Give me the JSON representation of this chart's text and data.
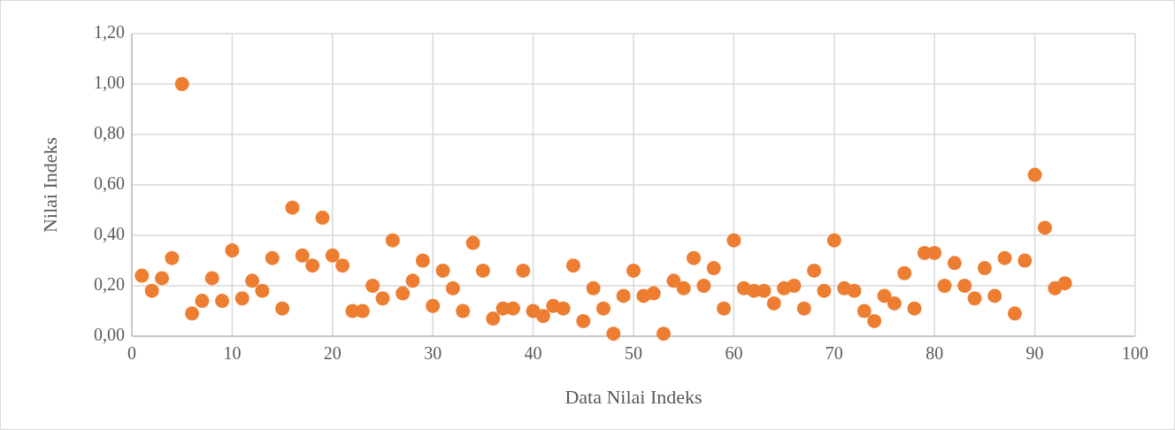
{
  "chart_data": {
    "type": "scatter",
    "xlabel": "Data Nilai Indeks",
    "ylabel": "Nilai Indeks",
    "x": [
      1,
      2,
      3,
      4,
      5,
      6,
      7,
      8,
      9,
      10,
      11,
      12,
      13,
      14,
      15,
      16,
      17,
      18,
      19,
      20,
      21,
      22,
      23,
      24,
      25,
      26,
      27,
      28,
      29,
      30,
      31,
      32,
      33,
      34,
      35,
      36,
      37,
      38,
      39,
      40,
      41,
      42,
      43,
      44,
      45,
      46,
      47,
      48,
      49,
      50,
      51,
      52,
      53,
      54,
      55,
      56,
      57,
      58,
      59,
      60,
      61,
      62,
      63,
      64,
      65,
      66,
      67,
      68,
      69,
      70,
      71,
      72,
      73,
      74,
      75,
      76,
      77,
      78,
      79,
      80,
      81,
      82,
      83,
      84,
      85,
      86,
      87,
      88,
      89,
      90,
      91,
      92,
      93
    ],
    "series": [
      {
        "color": "#ed7d31",
        "values": [
          0.24,
          0.18,
          0.23,
          0.31,
          1.0,
          0.09,
          0.14,
          0.23,
          0.14,
          0.34,
          0.15,
          0.22,
          0.18,
          0.31,
          0.11,
          0.51,
          0.32,
          0.28,
          0.47,
          0.32,
          0.28,
          0.1,
          0.1,
          0.2,
          0.15,
          0.38,
          0.17,
          0.22,
          0.3,
          0.12,
          0.26,
          0.19,
          0.1,
          0.37,
          0.26,
          0.07,
          0.11,
          0.11,
          0.26,
          0.1,
          0.08,
          0.12,
          0.11,
          0.28,
          0.06,
          0.19,
          0.11,
          0.01,
          0.16,
          0.26,
          0.16,
          0.17,
          0.01,
          0.22,
          0.19,
          0.31,
          0.2,
          0.27,
          0.11,
          0.38,
          0.19,
          0.18,
          0.18,
          0.13,
          0.19,
          0.2,
          0.11,
          0.26,
          0.18,
          0.38,
          0.19,
          0.18,
          0.1,
          0.06,
          0.16,
          0.13,
          0.25,
          0.11,
          0.33,
          0.33,
          0.2,
          0.29,
          0.2,
          0.15,
          0.27,
          0.16,
          0.31,
          0.09,
          0.3,
          0.64,
          0.43,
          0.19,
          0.21
        ]
      }
    ],
    "xlim": [
      0,
      100
    ],
    "xticks": [
      0,
      10,
      20,
      30,
      40,
      50,
      60,
      70,
      80,
      90,
      100
    ],
    "ylim": [
      0,
      1.2
    ],
    "yticks": [
      {
        "value": 0,
        "label": "0,00"
      },
      {
        "value": 0.2,
        "label": "0,20"
      },
      {
        "value": 0.4,
        "label": "0,40"
      },
      {
        "value": 0.6,
        "label": "0,60"
      },
      {
        "value": 0.8,
        "label": "0,80"
      },
      {
        "value": 1.0,
        "label": "1,00"
      },
      {
        "value": 1.2,
        "label": "1,20"
      }
    ],
    "grid": true,
    "marker": "circle"
  }
}
